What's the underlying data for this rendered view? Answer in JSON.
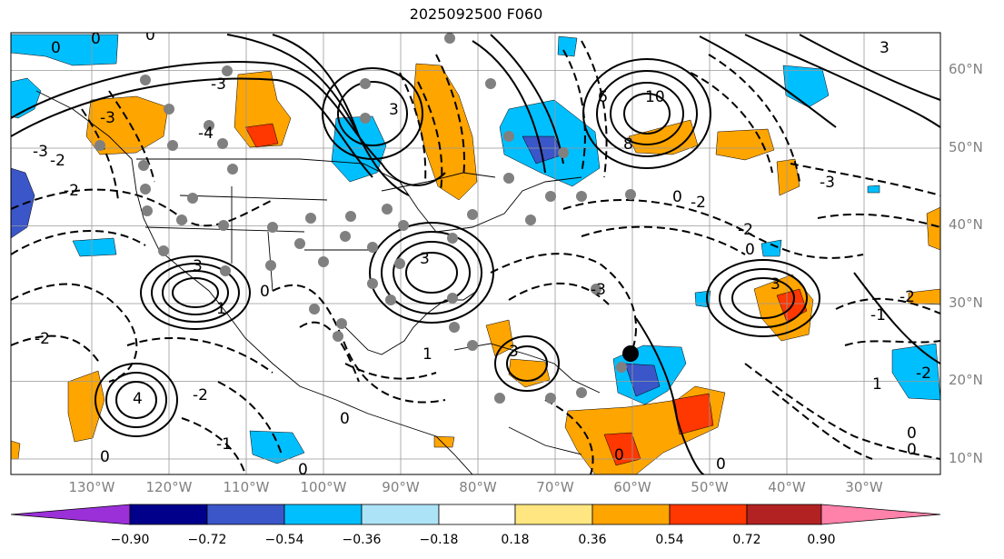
{
  "title": "2025092500 F060",
  "latitude_labels": [
    "60°N",
    "50°N",
    "40°N",
    "30°N",
    "20°N",
    "10°N"
  ],
  "longitude_labels": [
    "130°W",
    "120°W",
    "110°W",
    "100°W",
    "90°W",
    "80°W",
    "70°W",
    "60°W",
    "50°W",
    "40°W",
    "30°W"
  ],
  "colorbar": {
    "colors": [
      "#9b30d9",
      "#00008b",
      "#3a56c8",
      "#00bfff",
      "#ade3f7",
      "#ffffff",
      "#ffe680",
      "#ffa500",
      "#ff3700",
      "#b22222",
      "#ff82ab"
    ],
    "ticks": [
      "−0.90",
      "−0.72",
      "−0.54",
      "−0.36",
      "−0.18",
      "0.18",
      "0.36",
      "0.54",
      "0.72",
      "0.90"
    ]
  },
  "contour_labels": [
    "0",
    "0",
    "0",
    "-3",
    "-4",
    "-3",
    "-2",
    "-2",
    "-3",
    "3",
    "3",
    "3",
    "4",
    "3",
    "3",
    "1",
    "1",
    "1",
    "10",
    "8",
    "6",
    "-3",
    "-2",
    "-2",
    "-1",
    "-2",
    "-1",
    "-2",
    "-2",
    "-2",
    "0",
    "0",
    "0",
    "0",
    "0",
    "0",
    "0",
    "0",
    "0",
    "0",
    "3",
    "-3"
  ]
}
